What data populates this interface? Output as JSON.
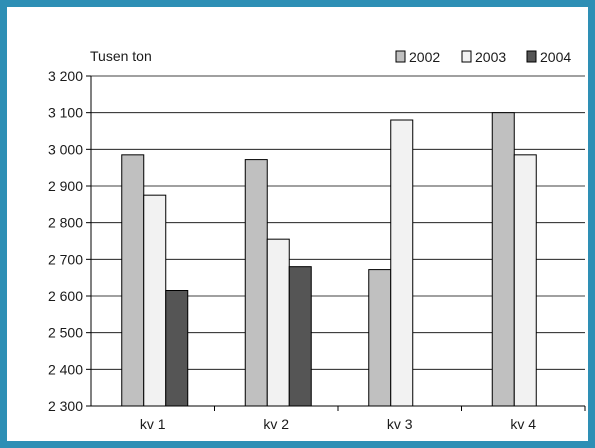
{
  "chart_data": {
    "type": "bar",
    "ylabel": "Tusen ton",
    "categories": [
      "kv 1",
      "kv 2",
      "kv 3",
      "kv 4"
    ],
    "ylim": [
      2300,
      3200
    ],
    "yticks": [
      2300,
      2400,
      2500,
      2600,
      2700,
      2800,
      2900,
      3000,
      3100,
      3200
    ],
    "ytick_labels": [
      "2 300",
      "2 400",
      "2 500",
      "2 600",
      "2 700",
      "2 800",
      "2 900",
      "3 000",
      "3 100",
      "3 200"
    ],
    "grid": true,
    "legend_position": "top-right",
    "series": [
      {
        "name": "2002",
        "color": "#c0c0c0",
        "values": [
          2985,
          2972,
          2672,
          3100
        ]
      },
      {
        "name": "2003",
        "color": "#f2f2f2",
        "values": [
          2875,
          2755,
          3080,
          2985
        ]
      },
      {
        "name": "2004",
        "color": "#555555",
        "values": [
          2615,
          2680,
          null,
          null
        ]
      }
    ]
  }
}
